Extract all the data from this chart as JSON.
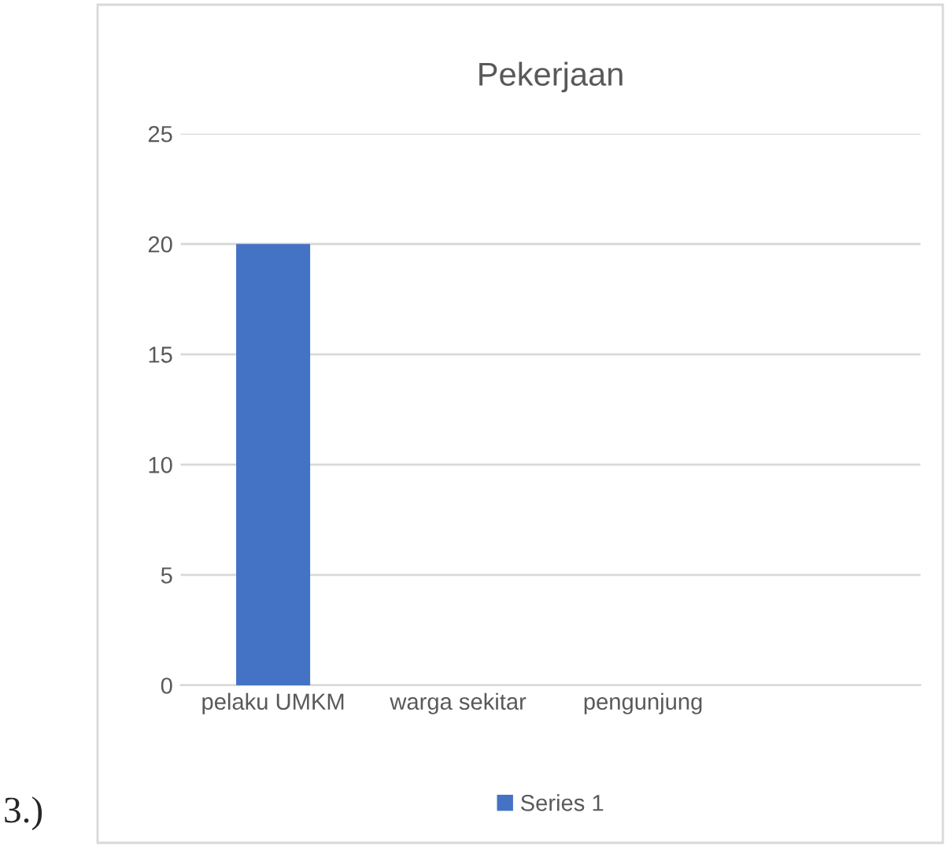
{
  "chart_data": {
    "type": "bar",
    "title": "Pekerjaan",
    "categories": [
      "pelaku UMKM",
      "warga sekitar",
      "pengunjung",
      null
    ],
    "series": [
      {
        "name": "Series 1",
        "color": "#4472c4",
        "values": [
          20,
          null,
          null,
          null
        ]
      }
    ],
    "ylim": [
      0,
      25
    ],
    "yticks": [
      0,
      5,
      10,
      15,
      20,
      25
    ],
    "grid": "y",
    "legend": "bottom",
    "annotations": [
      "3.)"
    ]
  }
}
